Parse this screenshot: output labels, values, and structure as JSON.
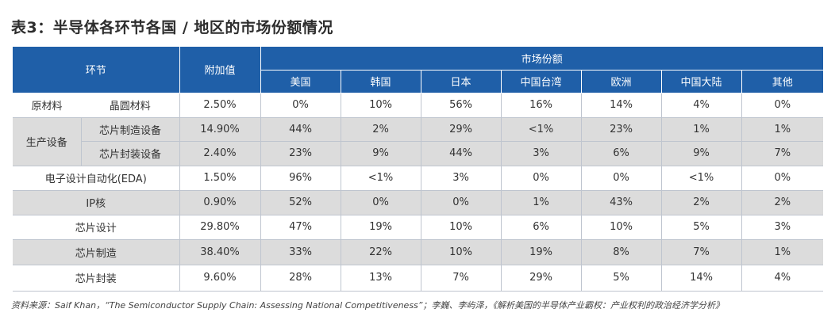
{
  "title": "表3：半导体各环节各国 / 地区的市场份额情况",
  "header": {
    "segment": "环节",
    "value_added": "附加值",
    "market_share": "市场份额",
    "regions": [
      "美国",
      "韩国",
      "日本",
      "中国台湾",
      "欧洲",
      "中国大陆",
      "其他"
    ]
  },
  "rows": {
    "raw_materials": {
      "group": "原材料",
      "sub": "晶圆材料",
      "value_added": "2.50%",
      "shares": [
        "0%",
        "10%",
        "56%",
        "16%",
        "14%",
        "4%",
        "0%"
      ]
    },
    "equipment": {
      "group": "生产设备",
      "fab_equipment": {
        "sub": "芯片制造设备",
        "value_added": "14.90%",
        "shares": [
          "44%",
          "2%",
          "29%",
          "<1%",
          "23%",
          "1%",
          "1%"
        ]
      },
      "packaging_equipment": {
        "sub": "芯片封装设备",
        "value_added": "2.40%",
        "shares": [
          "23%",
          "9%",
          "44%",
          "3%",
          "6%",
          "9%",
          "7%"
        ]
      }
    },
    "eda": {
      "label": "电子设计自动化(EDA)",
      "value_added": "1.50%",
      "shares": [
        "96%",
        "<1%",
        "3%",
        "0%",
        "0%",
        "<1%",
        "0%"
      ]
    },
    "ip": {
      "label": "IP核",
      "value_added": "0.90%",
      "shares": [
        "52%",
        "0%",
        "0%",
        "1%",
        "43%",
        "2%",
        "2%"
      ]
    },
    "design": {
      "label": "芯片设计",
      "value_added": "29.80%",
      "shares": [
        "47%",
        "19%",
        "10%",
        "6%",
        "10%",
        "5%",
        "3%"
      ]
    },
    "manufacturing": {
      "label": "芯片制造",
      "value_added": "38.40%",
      "shares": [
        "33%",
        "22%",
        "10%",
        "19%",
        "8%",
        "7%",
        "1%"
      ]
    },
    "packaging": {
      "label": "芯片封装",
      "value_added": "9.60%",
      "shares": [
        "28%",
        "13%",
        "7%",
        "29%",
        "5%",
        "14%",
        "4%"
      ]
    }
  },
  "source": "资料来源：Saif Khan，“The Semiconductor Supply Chain: Assessing National Competitiveness”；李巍、李屿泽，《解析美国的半导体产业霸权：产业权利的政治经济学分析》"
}
